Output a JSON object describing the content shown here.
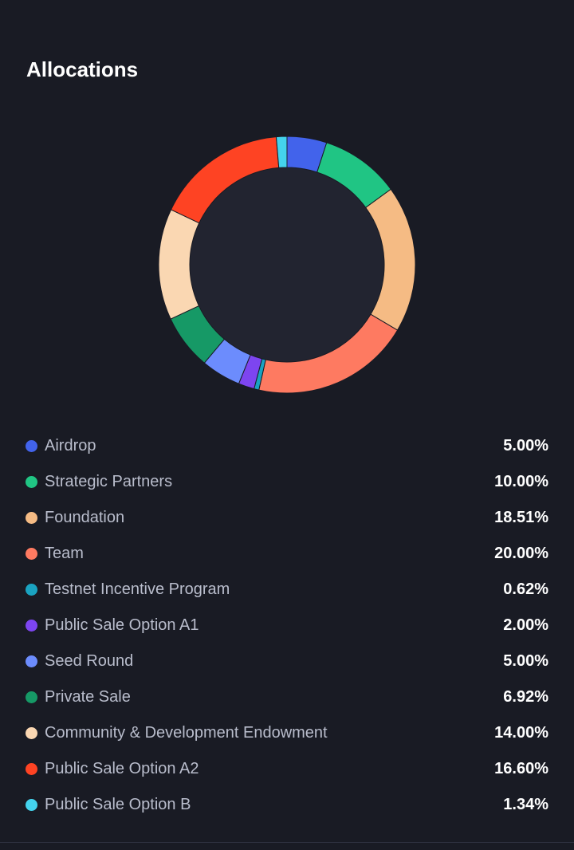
{
  "header": {
    "title": "Allocations"
  },
  "chart_data": {
    "type": "pie",
    "donut": true,
    "title": "Allocations",
    "legend_position": "bottom",
    "categories": [
      "Airdrop",
      "Strategic Partners",
      "Foundation",
      "Team",
      "Testnet Incentive Program",
      "Public Sale Option A1",
      "Seed Round",
      "Private Sale",
      "Community & Development Endowment",
      "Public Sale Option A2",
      "Public Sale Option B"
    ],
    "values": [
      5.0,
      10.0,
      18.51,
      20.0,
      0.62,
      2.0,
      5.0,
      6.92,
      14.0,
      16.6,
      1.34
    ],
    "value_labels": [
      "5.00%",
      "10.00%",
      "18.51%",
      "20.00%",
      "0.62%",
      "2.00%",
      "5.00%",
      "6.92%",
      "14.00%",
      "16.60%",
      "1.34%"
    ],
    "colors": [
      "#4263eb",
      "#20c584",
      "#f5bb84",
      "#fe7a61",
      "#1aa3c1",
      "#7d45f0",
      "#6c8cfd",
      "#169966",
      "#fad7b2",
      "#fe4323",
      "#44d3ed"
    ]
  },
  "theme": {
    "background": "#191b24",
    "donut_hole": "#222430",
    "label_color": "#b9bdcc",
    "value_color": "#ffffff"
  }
}
